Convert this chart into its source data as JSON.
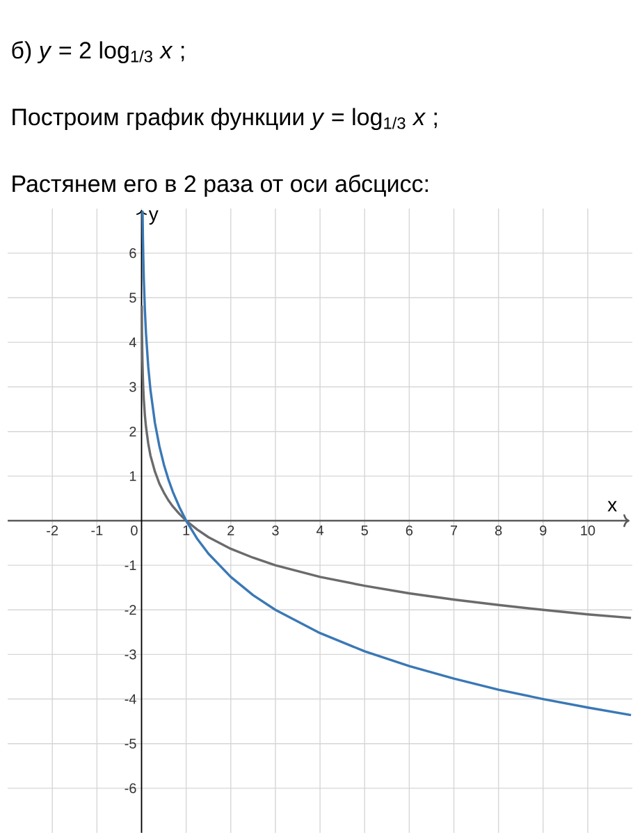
{
  "chart_data": {
    "type": "line",
    "title": "б) *y* = 2 log$_{1/3}$ *x* ;",
    "subtitle": "Построим график функции *y* = log$_{1/3}$ *x* ;",
    "annotations": [
      "Растянем его в 2 раза от оси абсцисс:"
    ],
    "xlabel": "x",
    "ylabel": "y",
    "xlim": [
      -3,
      11
    ],
    "ylim": [
      -7,
      7
    ],
    "xticks": [
      -2,
      -1,
      0,
      1,
      2,
      3,
      4,
      5,
      6,
      7,
      8,
      9,
      10
    ],
    "yticks": [
      -6,
      -5,
      -4,
      -3,
      -2,
      -1,
      1,
      2,
      3,
      4,
      5,
      6
    ],
    "grid": true,
    "marker": "none",
    "line_style": "solid",
    "series": [
      {
        "color": "#6b6b6b",
        "x": [
          0.005,
          0.01,
          0.02,
          0.03,
          0.04,
          0.05,
          0.075,
          0.1,
          0.15,
          0.2,
          0.3,
          0.4,
          0.5,
          0.6,
          0.7,
          0.85,
          1,
          1.25,
          1.5,
          2,
          2.5,
          3,
          4,
          5,
          6,
          7,
          8,
          9,
          10,
          10.97
        ],
        "values": [
          4.82,
          4.19,
          3.56,
          3.19,
          2.93,
          2.73,
          2.36,
          2.1,
          1.73,
          1.46,
          1.1,
          0.83,
          0.63,
          0.46,
          0.32,
          0.15,
          0,
          -0.2,
          -0.37,
          -0.63,
          -0.83,
          -1,
          -1.26,
          -1.46,
          -1.63,
          -1.77,
          -1.89,
          -2,
          -2.1,
          -2.18
        ]
      },
      {
        "color": "#3a78b5",
        "x": [
          0.022,
          0.03,
          0.04,
          0.05,
          0.075,
          0.1,
          0.15,
          0.2,
          0.3,
          0.4,
          0.5,
          0.6,
          0.7,
          0.85,
          1,
          1.25,
          1.5,
          2,
          2.5,
          3,
          4,
          5,
          6,
          7,
          8,
          9,
          10,
          10.97
        ],
        "values": [
          6.95,
          6.38,
          5.86,
          5.45,
          4.72,
          4.19,
          3.45,
          2.93,
          2.19,
          1.67,
          1.26,
          0.93,
          0.65,
          0.3,
          0,
          -0.41,
          -0.74,
          -1.26,
          -1.67,
          -2,
          -2.52,
          -2.93,
          -3.26,
          -3.54,
          -3.79,
          -4,
          -4.19,
          -4.36
        ]
      }
    ]
  }
}
